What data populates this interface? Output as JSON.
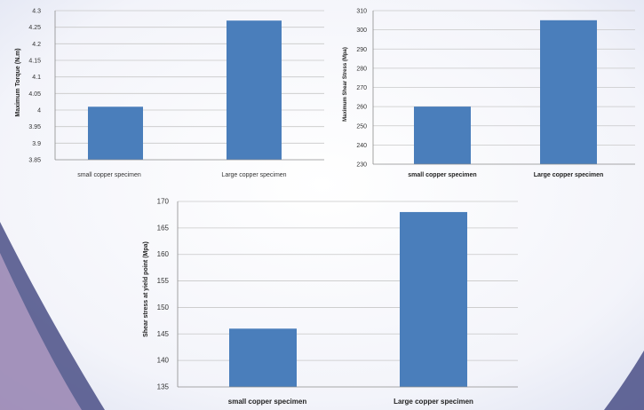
{
  "theme": {
    "bar_color": "#4a7ebb",
    "gridline_color": "#c8c8c8",
    "axis_color": "#8c8c8c",
    "background_arc_color": "#4a4f86"
  },
  "chart_data": [
    {
      "type": "bar",
      "title": "",
      "categories": [
        "small copper specimen",
        "Large copper specimen"
      ],
      "values": [
        4.01,
        4.27
      ],
      "xlabel": "",
      "ylabel": "Maximum Torque (N.m)",
      "ylim": [
        3.85,
        4.3
      ],
      "yticks": [
        "3.85",
        "3.9",
        "3.95",
        "4",
        "4.05",
        "4.1",
        "4.15",
        "4.2",
        "4.25",
        "4.3"
      ],
      "grid": true,
      "legend": "none"
    },
    {
      "type": "bar",
      "title": "",
      "categories": [
        "small copper specimen",
        "Large copper specimen"
      ],
      "values": [
        260,
        305
      ],
      "xlabel": "",
      "ylabel": "Maximum Shear Stress (Mpa)",
      "ylim": [
        230,
        310
      ],
      "yticks": [
        "230",
        "240",
        "250",
        "260",
        "270",
        "280",
        "290",
        "300",
        "310"
      ],
      "grid": true,
      "legend": "none"
    },
    {
      "type": "bar",
      "title": "",
      "categories": [
        "small copper specimen",
        "Large copper specimen"
      ],
      "values": [
        146,
        168
      ],
      "xlabel": "",
      "ylabel": "Shear stress at yield point (Mpa)",
      "ylim": [
        135,
        170
      ],
      "yticks": [
        "135",
        "140",
        "145",
        "150",
        "155",
        "160",
        "165",
        "170"
      ],
      "grid": true,
      "legend": "none"
    }
  ]
}
